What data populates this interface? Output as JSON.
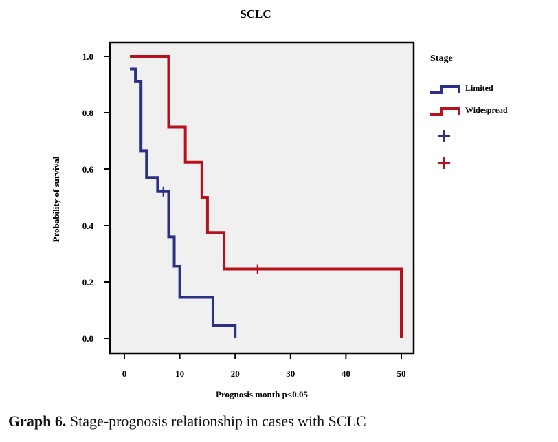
{
  "chart_data": {
    "type": "line",
    "subtype": "kaplan-meier step",
    "title": "SCLC",
    "xlabel": "Prognosis month p<0.05",
    "ylabel": "Probability of survival",
    "xlim": [
      0,
      50
    ],
    "ylim": [
      0,
      1.0
    ],
    "xticks": [
      "0",
      "10",
      "20",
      "30",
      "40",
      "50"
    ],
    "yticks": [
      "0.0",
      "0.2",
      "0.4",
      "0.6",
      "0.8",
      "1.0"
    ],
    "grid": false,
    "legend": {
      "title": "Stage",
      "placement": "right",
      "entries": [
        "Limited",
        "Widespread"
      ],
      "censor_markers": [
        "Limited-censored",
        "Widespread-censored"
      ]
    },
    "series": [
      {
        "name": "Limited",
        "color": "#2b2f86",
        "steps": [
          [
            1,
            0.955
          ],
          [
            2,
            0.91
          ],
          [
            3,
            0.665
          ],
          [
            4,
            0.57
          ],
          [
            6,
            0.52
          ],
          [
            8,
            0.36
          ],
          [
            9,
            0.255
          ],
          [
            10,
            0.145
          ],
          [
            16,
            0.045
          ],
          [
            20,
            0.0
          ]
        ],
        "censored": [
          [
            7,
            0.52
          ]
        ]
      },
      {
        "name": "Widespread",
        "color": "#b5121b",
        "steps": [
          [
            1,
            1.0
          ],
          [
            8,
            0.75
          ],
          [
            11,
            0.625
          ],
          [
            14,
            0.5
          ],
          [
            15,
            0.375
          ],
          [
            18,
            0.245
          ],
          [
            50,
            0.0
          ]
        ],
        "censored": [
          [
            24,
            0.245
          ]
        ]
      }
    ]
  },
  "caption": {
    "label": "Graph 6.",
    "text": " Stage-prognosis relationship in cases with SCLC"
  }
}
